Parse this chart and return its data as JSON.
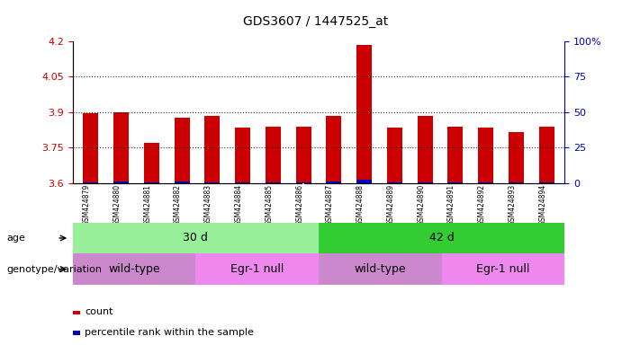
{
  "title": "GDS3607 / 1447525_at",
  "samples": [
    "GSM424879",
    "GSM424880",
    "GSM424881",
    "GSM424882",
    "GSM424883",
    "GSM424884",
    "GSM424885",
    "GSM424886",
    "GSM424887",
    "GSM424888",
    "GSM424889",
    "GSM424890",
    "GSM424891",
    "GSM424892",
    "GSM424893",
    "GSM424894"
  ],
  "red_values": [
    3.895,
    3.9,
    3.77,
    3.875,
    3.885,
    3.835,
    3.84,
    3.84,
    3.885,
    4.185,
    3.835,
    3.885,
    3.84,
    3.835,
    3.815,
    3.84
  ],
  "blue_values": [
    3.603,
    3.605,
    3.603,
    3.605,
    3.603,
    3.603,
    3.603,
    3.603,
    3.605,
    3.615,
    3.603,
    3.603,
    3.603,
    3.603,
    3.603,
    3.603
  ],
  "ymin": 3.6,
  "ymax": 4.2,
  "yticks": [
    3.6,
    3.75,
    3.9,
    4.05,
    4.2
  ],
  "y2ticks": [
    0,
    25,
    50,
    75,
    100
  ],
  "y2labels": [
    "0",
    "25",
    "50",
    "75",
    "100%"
  ],
  "grid_values": [
    3.75,
    3.9,
    4.05
  ],
  "age_groups": [
    {
      "label": "30 d",
      "start": 0,
      "end": 7,
      "color": "#99EE99"
    },
    {
      "label": "42 d",
      "start": 8,
      "end": 15,
      "color": "#33CC33"
    }
  ],
  "genotype_groups": [
    {
      "label": "wild-type",
      "start": 0,
      "end": 3,
      "color": "#CC88CC"
    },
    {
      "label": "Egr-1 null",
      "start": 4,
      "end": 7,
      "color": "#EE88EE"
    },
    {
      "label": "wild-type",
      "start": 8,
      "end": 11,
      "color": "#CC88CC"
    },
    {
      "label": "Egr-1 null",
      "start": 12,
      "end": 15,
      "color": "#EE88EE"
    }
  ],
  "bar_width": 0.5,
  "red_color": "#CC0000",
  "blue_color": "#0000BB",
  "title_fontsize": 10,
  "tick_color_left": "#CC0000",
  "tick_color_right": "#0000BB",
  "sample_bg_color": "#DDDDDD"
}
